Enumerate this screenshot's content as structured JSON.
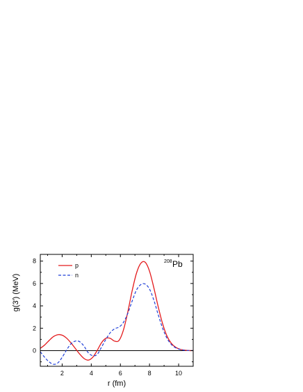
{
  "chart_data": {
    "type": "line",
    "xlabel": "r (fm)",
    "ylabel": "g(3′) (MeV)",
    "xlim": [
      0.5,
      11
    ],
    "ylim": [
      -1.4,
      8.6
    ],
    "xticks": [
      2,
      4,
      6,
      8,
      10
    ],
    "yticks": [
      0,
      2,
      4,
      6,
      8
    ],
    "grid": false,
    "legend_position": "top-left",
    "zero_line": true,
    "annotation": {
      "mass_number": "208",
      "element": "Pb",
      "position": "top-right"
    },
    "series": [
      {
        "name": "p",
        "color": "#e31a1c",
        "dash": "solid",
        "x": [
          0.5,
          0.8,
          1.1,
          1.4,
          1.7,
          2.0,
          2.3,
          2.6,
          2.9,
          3.2,
          3.5,
          3.8,
          4.1,
          4.4,
          4.7,
          5.0,
          5.3,
          5.6,
          5.9,
          6.2,
          6.5,
          6.8,
          7.1,
          7.4,
          7.7,
          8.0,
          8.3,
          8.6,
          8.9,
          9.2,
          9.5,
          9.8,
          10.1,
          10.4,
          10.7,
          11.0
        ],
        "y": [
          0.2,
          0.5,
          0.9,
          1.25,
          1.42,
          1.38,
          1.12,
          0.7,
          0.2,
          -0.3,
          -0.7,
          -0.85,
          -0.6,
          0.0,
          0.7,
          1.1,
          1.1,
          0.85,
          0.9,
          1.8,
          3.4,
          5.3,
          6.9,
          7.8,
          7.9,
          7.1,
          5.6,
          3.9,
          2.4,
          1.3,
          0.65,
          0.3,
          0.12,
          0.04,
          0.01,
          0.0
        ]
      },
      {
        "name": "n",
        "color": "#1f3fd8",
        "dash": "dashed",
        "x": [
          0.5,
          0.8,
          1.1,
          1.4,
          1.7,
          2.0,
          2.3,
          2.6,
          2.9,
          3.2,
          3.5,
          3.8,
          4.1,
          4.4,
          4.7,
          5.0,
          5.3,
          5.6,
          5.9,
          6.2,
          6.5,
          6.8,
          7.1,
          7.4,
          7.7,
          8.0,
          8.3,
          8.6,
          8.9,
          9.2,
          9.5,
          9.8,
          10.1,
          10.4,
          10.7,
          11.0
        ],
        "y": [
          -0.1,
          -0.6,
          -1.0,
          -1.22,
          -1.1,
          -0.6,
          0.05,
          0.6,
          0.85,
          0.8,
          0.4,
          -0.2,
          -0.45,
          -0.35,
          0.3,
          1.0,
          1.6,
          1.95,
          2.1,
          2.5,
          3.3,
          4.4,
          5.4,
          5.9,
          5.95,
          5.5,
          4.5,
          3.2,
          2.0,
          1.1,
          0.55,
          0.25,
          0.1,
          0.03,
          0.01,
          0.0
        ]
      }
    ]
  }
}
